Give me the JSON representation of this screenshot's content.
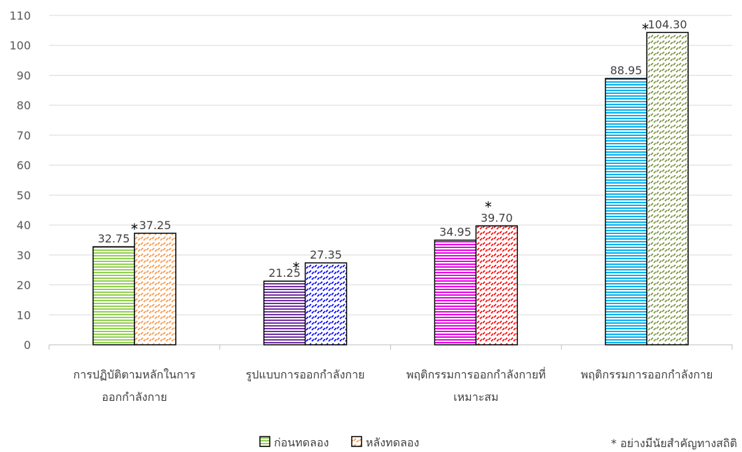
{
  "chart_data": {
    "type": "bar",
    "categories": [
      [
        "การปฏิบัติตามหลักในการ",
        "ออกกำลังกาย"
      ],
      [
        "รูปแบบการออกกำลังกาย"
      ],
      [
        "พฤติกรรมการออกกำลังกายที่",
        "เหมาะสม"
      ],
      [
        "พฤติกรรมการออกกำลังกาย"
      ]
    ],
    "series": [
      {
        "name": "ก่อนทดลอง",
        "values": [
          32.75,
          21.25,
          34.95,
          88.95
        ],
        "labels": [
          "32.75",
          "21.25",
          "34.95",
          "88.95"
        ],
        "colors": [
          "#92d050",
          "#7030a0",
          "#e600e6",
          "#00b0f0"
        ],
        "pattern": "horizontal-lines"
      },
      {
        "name": "หลังทดลอง",
        "values": [
          37.25,
          27.35,
          39.7,
          104.3
        ],
        "labels": [
          "37.25",
          "27.35",
          "39.70",
          "104.30"
        ],
        "colors": [
          "#f79646",
          "#0000ff",
          "#ff0000",
          "#77933c"
        ],
        "pattern": "diagonal-dashes"
      }
    ],
    "significance_marker": "*",
    "significant": [
      true,
      true,
      true,
      true
    ],
    "ylim": [
      0,
      110
    ],
    "yticks": [
      0,
      10,
      20,
      30,
      40,
      50,
      60,
      70,
      80,
      90,
      100,
      110
    ],
    "grid": true,
    "legend_position": "bottom-center",
    "footnote": "* อย่างมีนัยสำคัญทางสถิติ"
  }
}
